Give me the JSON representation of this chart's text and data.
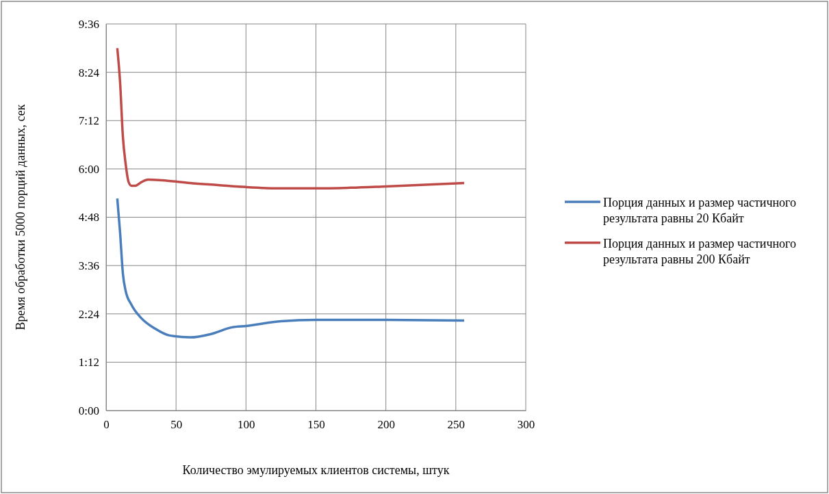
{
  "chart_data": {
    "type": "line",
    "xlabel": "Количество эмулируемых клиентов системы,  штук",
    "ylabel": "Время обработки  5000 порций данных, сек",
    "xlim": [
      0,
      300
    ],
    "xticks": [
      0,
      50,
      100,
      150,
      200,
      250,
      300
    ],
    "ylim": [
      0,
      576
    ],
    "yticks": [
      {
        "value": 0,
        "label": "0:00"
      },
      {
        "value": 72,
        "label": "1:12"
      },
      {
        "value": 144,
        "label": "2:24"
      },
      {
        "value": 216,
        "label": "3:36"
      },
      {
        "value": 288,
        "label": "4:48"
      },
      {
        "value": 360,
        "label": "6:00"
      },
      {
        "value": 432,
        "label": "7:12"
      },
      {
        "value": 504,
        "label": "8:24"
      },
      {
        "value": 576,
        "label": "9:36"
      }
    ],
    "grid": true,
    "legend": "right",
    "marker": "none",
    "line_style": "solid",
    "series": [
      {
        "name": "Порция данных и размер частичного результата равны 20 Кбайт",
        "color": "#4a7ebb",
        "x": [
          8,
          10,
          12,
          14,
          18,
          25,
          35,
          45,
          60,
          75,
          90,
          100,
          125,
          150,
          175,
          200,
          256
        ],
        "values": [
          316,
          265,
          204,
          178,
          158,
          138,
          122,
          112,
          109,
          114,
          124,
          126,
          133,
          135,
          135,
          135,
          134
        ]
      },
      {
        "name": "Порция данных и размер частичного результата равны 200 Кбайт",
        "color": "#be4b48",
        "x": [
          8,
          10,
          12,
          14,
          16,
          18,
          21,
          25,
          30,
          40,
          60,
          80,
          100,
          125,
          150,
          175,
          200,
          256
        ],
        "values": [
          540,
          489,
          408,
          367,
          341,
          335,
          335,
          340,
          344,
          343,
          339,
          336,
          333,
          331,
          331,
          332,
          334,
          339
        ]
      }
    ]
  }
}
